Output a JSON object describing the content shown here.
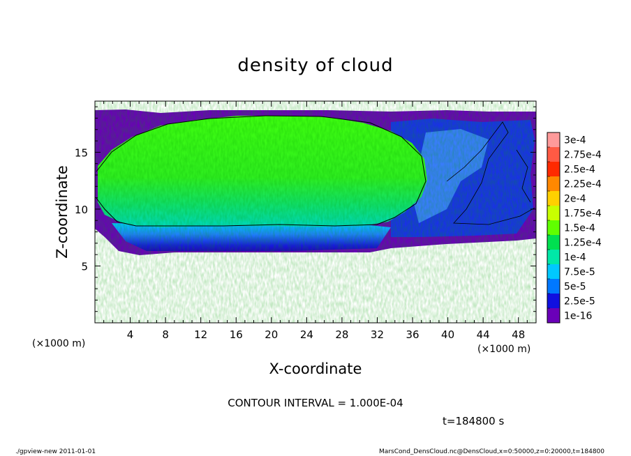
{
  "chart_data": {
    "type": "heatmap",
    "title": "density of cloud",
    "xlabel": "X-coordinate",
    "ylabel": "Z-coordinate",
    "x_unit": "(×1000 m)",
    "y_unit": "(×1000 m)",
    "xlim": [
      0,
      50
    ],
    "ylim": [
      0,
      19.5
    ],
    "x_ticks": [
      4,
      8,
      12,
      16,
      20,
      24,
      28,
      32,
      36,
      40,
      44,
      48
    ],
    "y_ticks": [
      5,
      10,
      15
    ],
    "colorbar_labels": [
      "3e-4",
      "2.75e-4",
      "2.5e-4",
      "2.25e-4",
      "2e-4",
      "1.75e-4",
      "1.5e-4",
      "1.25e-4",
      "1e-4",
      "7.5e-5",
      "5e-5",
      "2.5e-5",
      "1e-16"
    ],
    "colorbar_colors": [
      "#ff9a9a",
      "#ff5a44",
      "#ff2a00",
      "#ff8800",
      "#ffd000",
      "#c8ff00",
      "#60ff00",
      "#00e050",
      "#00e8a8",
      "#00c8ff",
      "#0078ff",
      "#1010e0",
      "#6a00b8"
    ],
    "contour_interval": "CONTOUR INTERVAL = 1.000E-04",
    "time": "t=184800 s"
  },
  "footer": {
    "left": "./gpview-new  2011-01-01",
    "right": "MarsCond_DensCloud.nc@DensCloud,x=0:50000,z=0:20000,t=184800"
  }
}
